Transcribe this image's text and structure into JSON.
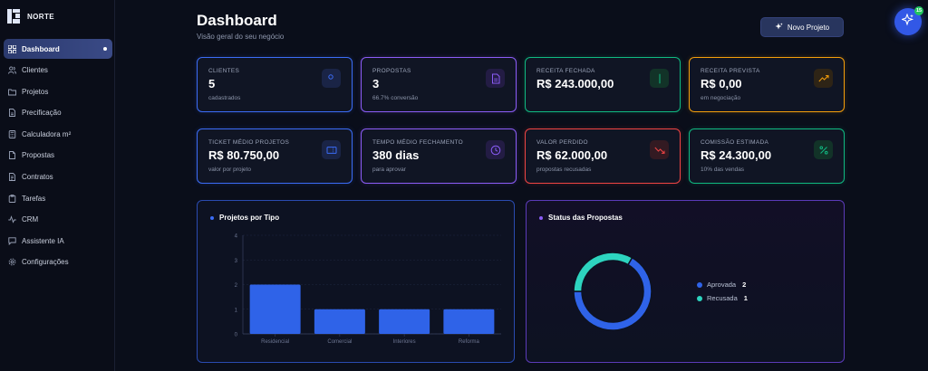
{
  "brand": {
    "name": "NORTE"
  },
  "sidebar": {
    "items": [
      {
        "label": "Dashboard",
        "icon": "grid-icon",
        "active": true
      },
      {
        "label": "Clientes",
        "icon": "users-icon"
      },
      {
        "label": "Projetos",
        "icon": "folder-icon"
      },
      {
        "label": "Precificação",
        "icon": "file-icon"
      },
      {
        "label": "Calculadora m²",
        "icon": "calculator-icon"
      },
      {
        "label": "Propostas",
        "icon": "document-icon"
      },
      {
        "label": "Contratos",
        "icon": "contract-icon"
      },
      {
        "label": "Tarefas",
        "icon": "clipboard-icon"
      },
      {
        "label": "CRM",
        "icon": "activity-icon"
      },
      {
        "label": "Assistente IA",
        "icon": "chat-icon"
      },
      {
        "label": "Configurações",
        "icon": "gear-icon"
      }
    ]
  },
  "header": {
    "title": "Dashboard",
    "subtitle": "Visão geral do seu negócio",
    "new_project_label": "Novo Projeto",
    "assistant_badge": "15"
  },
  "stats": [
    {
      "label": "CLIENTES",
      "value": "5",
      "sub": "cadastrados",
      "color": "#3b6cf6",
      "icon": "users-icon"
    },
    {
      "label": "PROPOSTAS",
      "value": "3",
      "sub": "66.7% conversão",
      "color": "#8b5cf6",
      "icon": "document-icon"
    },
    {
      "label": "RECEITA FECHADA",
      "value": "R$ 243.000,00",
      "sub": "",
      "color": "#10b981",
      "icon": "dollar-icon"
    },
    {
      "label": "RECEITA PREVISTA",
      "value": "R$ 0,00",
      "sub": "em negociação",
      "color": "#f59e0b",
      "icon": "trending-up-icon"
    },
    {
      "label": "TICKET MÉDIO PROJETOS",
      "value": "R$ 80.750,00",
      "sub": "valor por projeto",
      "color": "#3b6cf6",
      "icon": "ticket-icon"
    },
    {
      "label": "TEMPO MÉDIO FECHAMENTO",
      "value": "380 dias",
      "sub": "para aprovar",
      "color": "#8b5cf6",
      "icon": "clock-icon"
    },
    {
      "label": "VALOR PERDIDO",
      "value": "R$ 62.000,00",
      "sub": "propostas recusadas",
      "color": "#ef4444",
      "icon": "trending-down-icon"
    },
    {
      "label": "COMISSÃO ESTIMADA",
      "value": "R$ 24.300,00",
      "sub": "10% das vendas",
      "color": "#10b981",
      "icon": "percent-icon"
    }
  ],
  "panels": {
    "projects_title": "Projetos por Tipo",
    "proposals_title": "Status das Propostas"
  },
  "chart_data": [
    {
      "type": "bar",
      "title": "Projetos por Tipo",
      "categories": [
        "Residencial",
        "Comercial",
        "Interiores",
        "Reforma"
      ],
      "values": [
        2,
        1,
        1,
        1
      ],
      "ylim": [
        0,
        4
      ],
      "yticks": [
        "0",
        "1",
        "2",
        "3",
        "4"
      ],
      "color": "#2f63e8",
      "grid": true
    },
    {
      "type": "pie",
      "title": "Status das Propostas",
      "labels": [
        "Aprovada",
        "Recusada"
      ],
      "values": [
        2,
        1
      ],
      "values_text": [
        "2",
        "1"
      ],
      "colors": [
        "#2f63e8",
        "#2dd4bf"
      ],
      "legend": "right"
    }
  ]
}
